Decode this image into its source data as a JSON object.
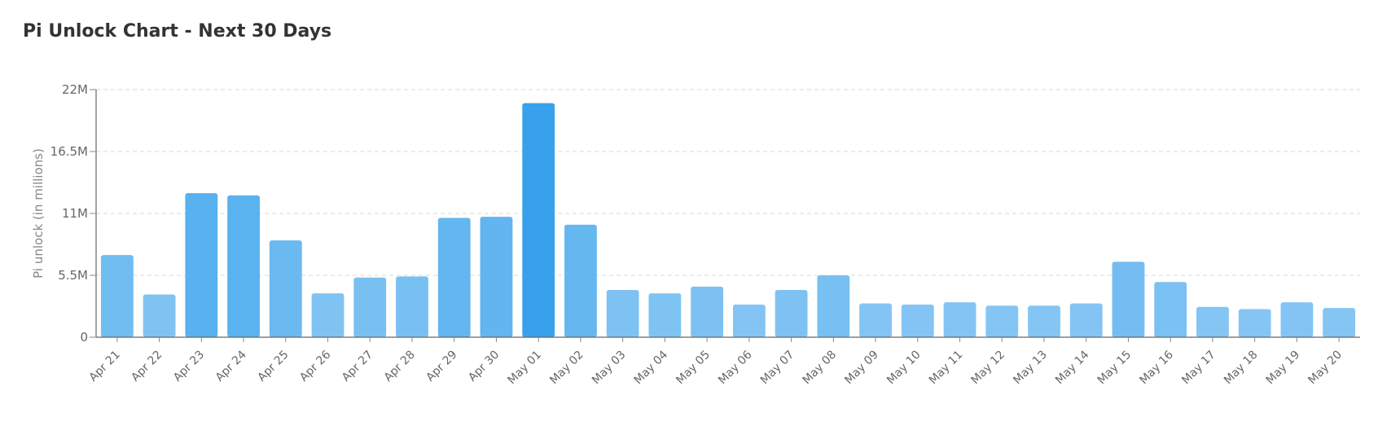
{
  "chart_data": {
    "type": "bar",
    "title": "Pi Unlock Chart - Next 30 Days",
    "ylabel": "Pi unlock (in millions)",
    "xlabel": "",
    "ylim": [
      0,
      22
    ],
    "yticks": [
      {
        "value": 0,
        "label": "0"
      },
      {
        "value": 5.5,
        "label": "5.5M"
      },
      {
        "value": 11,
        "label": "11M"
      },
      {
        "value": 16.5,
        "label": "16.5M"
      },
      {
        "value": 22,
        "label": "22M"
      }
    ],
    "grid": true,
    "legend": "none",
    "bar_color_light": "#90CAF5",
    "bar_color_dark": "#37A2EB",
    "categories": [
      "Apr 21",
      "Apr 22",
      "Apr 23",
      "Apr 24",
      "Apr 25",
      "Apr 26",
      "Apr 27",
      "Apr 28",
      "Apr 29",
      "Apr 30",
      "May 01",
      "May 02",
      "May 03",
      "May 04",
      "May 05",
      "May 06",
      "May 07",
      "May 08",
      "May 09",
      "May 10",
      "May 11",
      "May 12",
      "May 13",
      "May 14",
      "May 15",
      "May 16",
      "May 17",
      "May 18",
      "May 19",
      "May 20"
    ],
    "values": [
      7.3,
      3.8,
      12.8,
      12.6,
      8.6,
      3.9,
      5.3,
      5.4,
      10.6,
      10.7,
      20.8,
      10.0,
      4.2,
      3.9,
      4.5,
      2.9,
      4.2,
      5.5,
      3.0,
      2.9,
      3.1,
      2.8,
      2.8,
      3.0,
      6.7,
      4.9,
      2.7,
      2.5,
      3.1,
      2.6
    ]
  }
}
